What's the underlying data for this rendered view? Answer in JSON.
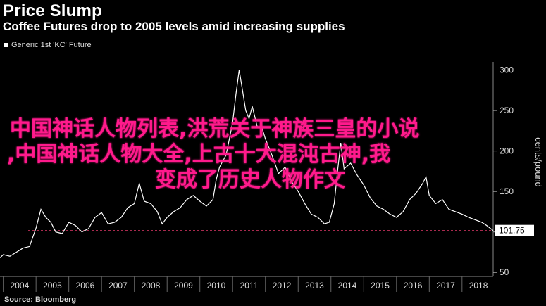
{
  "header": {
    "title": "Price Slump",
    "subtitle": "Coffee Futures drop to 2005 levels amid increasing supplies"
  },
  "legend": {
    "label": "Generic 1st 'KC' Future"
  },
  "source": "Source: Bloomberg",
  "overlay": {
    "line1": "中国神话人物列表,洪荒关于神族三皇的小说",
    "line2": ",中国神话人物大全,上古十大混沌古神,我",
    "line3": "变成了历史人物作文"
  },
  "colors": {
    "background": "#000000",
    "line": "#ffffff",
    "reference_line": "#c0305a",
    "overlay_text": "#ff1a8c"
  },
  "chart_data": {
    "type": "line",
    "title": "Price Slump",
    "subtitle": "Coffee Futures drop to 2005 levels amid increasing supplies",
    "ylabel": "cents/pound",
    "xlabel": "",
    "x_ticks": [
      "2004",
      "2005",
      "2006",
      "2007",
      "2008",
      "2009",
      "2010",
      "2011",
      "2012",
      "2013",
      "2014",
      "2015",
      "2016",
      "2017",
      "2018"
    ],
    "y_ticks": [
      50,
      100,
      150,
      200,
      250,
      300
    ],
    "ylim": [
      45,
      310
    ],
    "xlim": [
      2003.9,
      2018.95
    ],
    "grid": false,
    "last_value_label": "101.75",
    "reference_line": 101.75,
    "series": [
      {
        "name": "Generic 1st 'KC' Future",
        "x": [
          2003.9,
          2004.0,
          2004.2,
          2004.4,
          2004.6,
          2004.8,
          2005.0,
          2005.15,
          2005.3,
          2005.45,
          2005.6,
          2005.8,
          2006.0,
          2006.2,
          2006.4,
          2006.6,
          2006.8,
          2007.0,
          2007.2,
          2007.4,
          2007.6,
          2007.8,
          2008.0,
          2008.15,
          2008.3,
          2008.5,
          2008.7,
          2008.85,
          2009.0,
          2009.2,
          2009.4,
          2009.6,
          2009.8,
          2010.0,
          2010.2,
          2010.4,
          2010.5,
          2010.6,
          2010.8,
          2010.9,
          2011.0,
          2011.1,
          2011.2,
          2011.3,
          2011.4,
          2011.5,
          2011.6,
          2011.75,
          2011.9,
          2012.0,
          2012.2,
          2012.4,
          2012.6,
          2012.8,
          2013.0,
          2013.2,
          2013.4,
          2013.6,
          2013.8,
          2013.95,
          2014.1,
          2014.2,
          2014.3,
          2014.4,
          2014.6,
          2014.8,
          2015.0,
          2015.2,
          2015.4,
          2015.6,
          2015.8,
          2016.0,
          2016.2,
          2016.4,
          2016.6,
          2016.8,
          2016.9,
          2017.0,
          2017.2,
          2017.4,
          2017.6,
          2017.8,
          2018.0,
          2018.2,
          2018.4,
          2018.6,
          2018.75,
          2018.95
        ],
        "values": [
          68,
          72,
          70,
          75,
          80,
          82,
          105,
          128,
          118,
          112,
          100,
          98,
          112,
          108,
          100,
          104,
          118,
          124,
          110,
          112,
          118,
          130,
          135,
          160,
          138,
          135,
          125,
          110,
          118,
          125,
          130,
          140,
          145,
          138,
          132,
          140,
          165,
          180,
          195,
          215,
          235,
          270,
          300,
          275,
          250,
          240,
          255,
          230,
          228,
          215,
          195,
          172,
          180,
          162,
          150,
          135,
          122,
          118,
          110,
          112,
          135,
          175,
          210,
          178,
          185,
          170,
          158,
          142,
          132,
          128,
          122,
          118,
          125,
          140,
          148,
          160,
          168,
          145,
          135,
          140,
          128,
          125,
          122,
          118,
          115,
          112,
          108,
          101.75
        ]
      }
    ]
  }
}
